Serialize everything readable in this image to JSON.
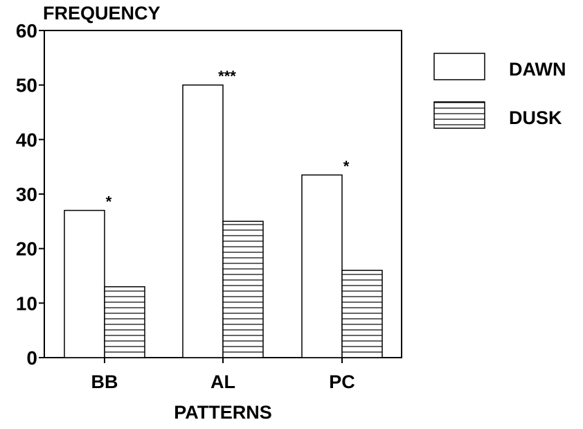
{
  "chart_data": {
    "type": "bar",
    "ylabel": "FREQUENCY",
    "xlabel": "PATTERNS",
    "ylim": [
      0,
      60
    ],
    "yticks": [
      0,
      10,
      20,
      30,
      40,
      50,
      60
    ],
    "categories": [
      "BB",
      "AL",
      "PC"
    ],
    "series": [
      {
        "name": "DAWN",
        "values": [
          27,
          50,
          33.5
        ],
        "fill": "#ffffff"
      },
      {
        "name": "DUSK",
        "values": [
          13,
          25,
          16
        ],
        "fill": "hatched-horizontal"
      }
    ],
    "annotations": [
      "*",
      "***",
      "*"
    ],
    "legend_position": "right",
    "grid": false,
    "colors": {
      "stroke": "#000000",
      "background": "#ffffff"
    }
  }
}
